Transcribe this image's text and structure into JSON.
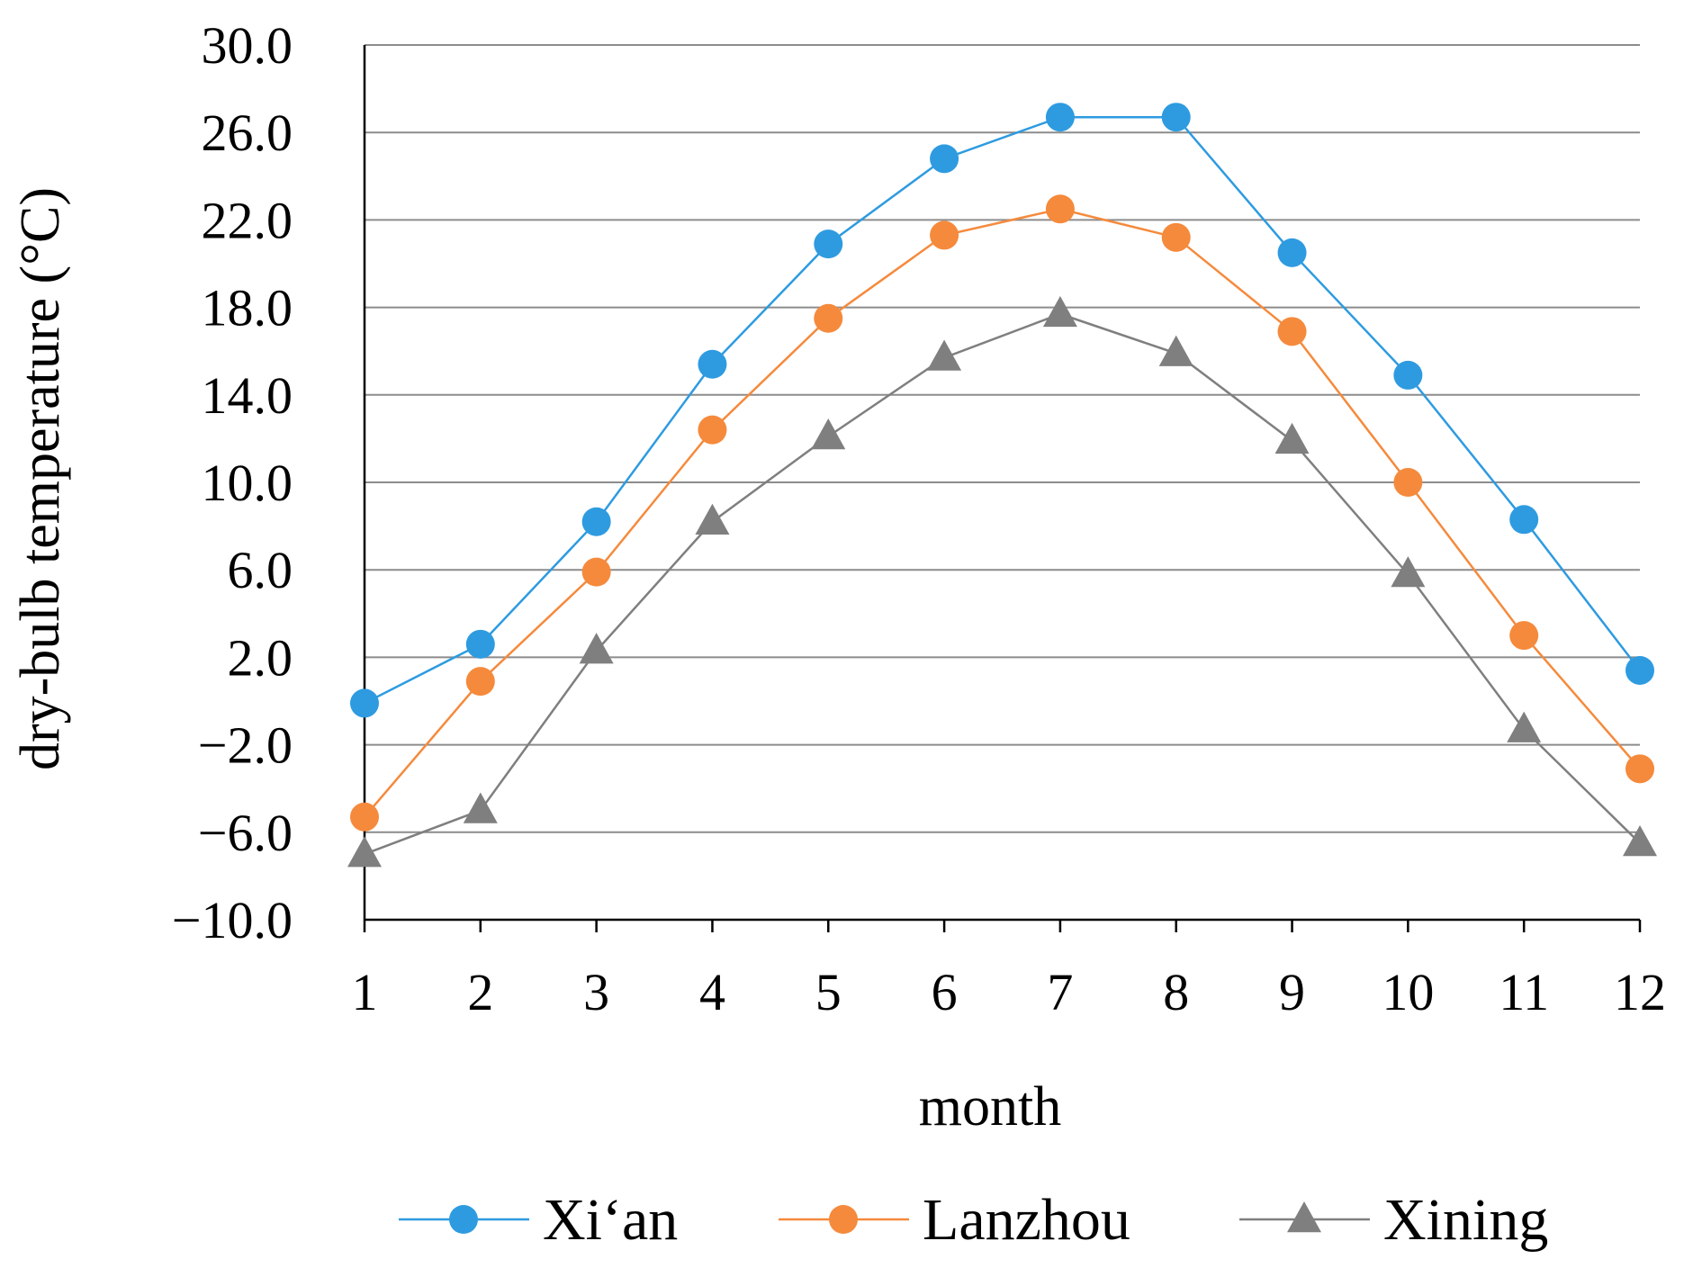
{
  "chart_data": {
    "type": "line",
    "title": "",
    "xlabel": "month",
    "ylabel": "dry-bulb temperature (°C)",
    "x": [
      1,
      2,
      3,
      4,
      5,
      6,
      7,
      8,
      9,
      10,
      11,
      12
    ],
    "x_tick_labels": [
      "1",
      "2",
      "3",
      "4",
      "5",
      "6",
      "7",
      "8",
      "9",
      "10",
      "11",
      "12"
    ],
    "ylim": [
      -10,
      30
    ],
    "y_ticks": [
      -10,
      -6,
      -2,
      2,
      6,
      10,
      14,
      18,
      22,
      26,
      30
    ],
    "y_tick_labels": [
      "−10.0",
      "−6.0",
      "−2.0",
      "2.0",
      "6.0",
      "10.0",
      "14.0",
      "18.0",
      "22.0",
      "26.0",
      "30.0"
    ],
    "grid": true,
    "legend_position": "bottom",
    "series": [
      {
        "name": "Xi‘an",
        "color": "#2e9be0",
        "marker": "circle",
        "values": [
          -0.1,
          2.6,
          8.2,
          15.4,
          20.9,
          24.8,
          26.7,
          26.7,
          20.5,
          14.9,
          8.3,
          1.4
        ]
      },
      {
        "name": "Lanzhou",
        "color": "#f58a3c",
        "marker": "circle",
        "values": [
          -5.3,
          0.9,
          5.9,
          12.4,
          17.5,
          21.3,
          22.5,
          21.2,
          16.9,
          10.0,
          3.0,
          -3.1
        ]
      },
      {
        "name": "Xining",
        "color": "#7f7f7f",
        "marker": "triangle",
        "values": [
          -7.0,
          -5.0,
          2.3,
          8.2,
          12.1,
          15.7,
          17.7,
          15.9,
          11.9,
          5.8,
          -1.3,
          -6.5
        ]
      }
    ]
  }
}
